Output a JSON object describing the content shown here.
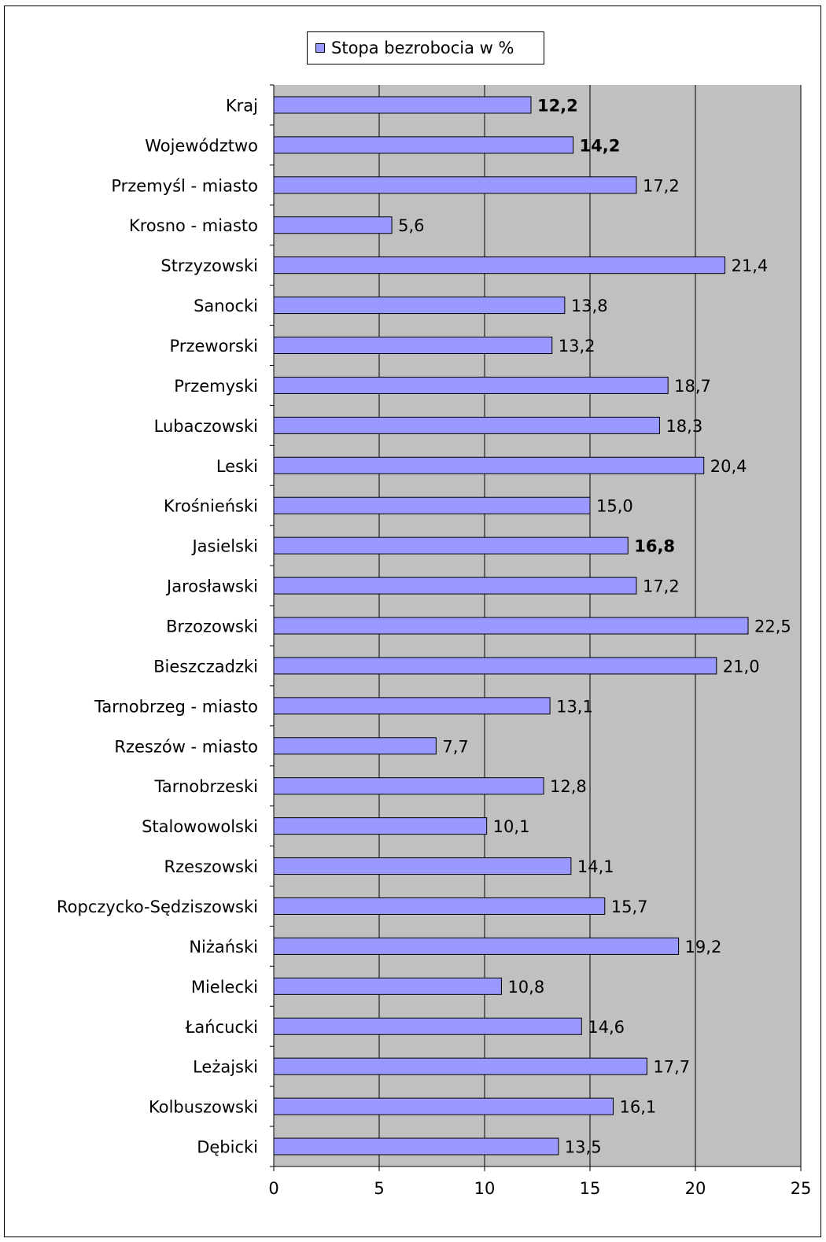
{
  "chart_data": {
    "type": "bar",
    "orientation": "horizontal",
    "title": "",
    "xlabel": "",
    "ylabel": "",
    "legend": [
      "Stopa bezrobocia w %"
    ],
    "legend_position": "top",
    "xlim": [
      0,
      25
    ],
    "x_ticks": [
      "0",
      "5",
      "10",
      "15",
      "20",
      "25"
    ],
    "grid": true,
    "plot_background": "#c0c0c0",
    "bar_color": "#9999ff",
    "categories": [
      "Kraj",
      "Województwo",
      "Przemyśl - miasto",
      "Krosno - miasto",
      "Strzyzowski",
      "Sanocki",
      "Przeworski",
      "Przemyski",
      "Lubaczowski",
      "Leski",
      "Krośnieński",
      "Jasielski",
      "Jarosławski",
      "Brzozowski",
      "Bieszczadzki",
      "Tarnobrzeg - miasto",
      "Rzeszów - miasto",
      "Tarnobrzeski",
      "Stalowowolski",
      "Rzeszowski",
      "Ropczycko-Sędziszowski",
      "Niżański",
      "Mielecki",
      "Łańcucki",
      "Leżajski",
      "Kolbuszowski",
      "Dębicki"
    ],
    "values": [
      12.2,
      14.2,
      17.2,
      5.6,
      21.4,
      13.8,
      13.2,
      18.7,
      18.3,
      20.4,
      15.0,
      16.8,
      17.2,
      22.5,
      21.0,
      13.1,
      7.7,
      12.8,
      10.1,
      14.1,
      15.7,
      19.2,
      10.8,
      14.6,
      17.7,
      16.1,
      13.5
    ],
    "value_labels": [
      "12,2",
      "14,2",
      "17,2",
      "5,6",
      "21,4",
      "13,8",
      "13,2",
      "18,7",
      "18,3",
      "20,4",
      "15,0",
      "16,8",
      "17,2",
      "22,5",
      "21,0",
      "13,1",
      "7,7",
      "12,8",
      "10,1",
      "14,1",
      "15,7",
      "19,2",
      "10,8",
      "14,6",
      "17,7",
      "16,1",
      "13,5"
    ],
    "bold_value_labels": [
      0,
      1,
      11
    ]
  }
}
